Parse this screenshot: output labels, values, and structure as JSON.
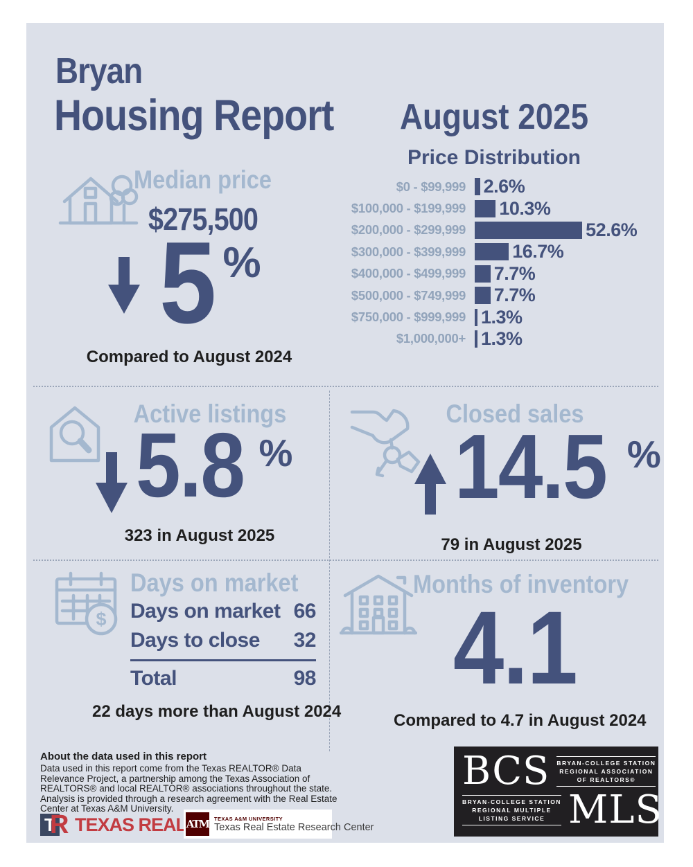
{
  "header": {
    "location": "Bryan",
    "report_title": "Housing Report",
    "period": "August 2025"
  },
  "colors": {
    "navy": "#44527c",
    "light_blue": "#a4b8cf",
    "chart_label_blue": "#92a4bb",
    "panel_background": "#dce0e9",
    "text_dark": "#1e1e1e",
    "realtors_red": "#c23b41",
    "tamu_maroon": "#500000",
    "bcs_box_black": "#211f22"
  },
  "chart_data": {
    "type": "bar",
    "orientation": "horizontal",
    "title": "Price Distribution",
    "categories": [
      "$0 - $99,999",
      "$100,000 - $199,999",
      "$200,000 - $299,999",
      "$300,000 - $399,999",
      "$400,000 - $499,999",
      "$500,000 - $749,999",
      "$750,000 - $999,999",
      "$1,000,000+"
    ],
    "values": [
      2.6,
      10.3,
      52.6,
      16.7,
      7.7,
      7.7,
      1.3,
      1.3
    ],
    "value_labels": [
      "2.6%",
      "10.3%",
      "52.6%",
      "16.7%",
      "7.7%",
      "7.7%",
      "1.3%",
      "1.3%"
    ],
    "unit": "%",
    "xlim": [
      0,
      55
    ],
    "grid": false,
    "legend": "none"
  },
  "median_price": {
    "title": "Median price",
    "value": "$275,500",
    "change_value": "5",
    "change_unit": "%",
    "direction": "down",
    "comparison": "Compared to August 2024"
  },
  "active_listings": {
    "title": "Active listings",
    "change_value": "5.8",
    "change_unit": "%",
    "direction": "down",
    "caption": "323 in August 2025"
  },
  "closed_sales": {
    "title": "Closed sales",
    "change_value": "14.5",
    "change_unit": "%",
    "direction": "up",
    "caption": "79 in August 2025"
  },
  "days_on_market": {
    "title": "Days on market",
    "rows": [
      {
        "label": "Days on market",
        "value": "66"
      },
      {
        "label": "Days to close",
        "value": "32"
      }
    ],
    "total_label": "Total",
    "total_value": "98",
    "caption": "22 days more than August 2024"
  },
  "months_of_inventory": {
    "title": "Months of inventory",
    "value": "4.1",
    "comparison": "Compared to 4.7 in August 2024"
  },
  "footer": {
    "about_title": "About the data used in this report",
    "about_body": "Data used in this report come from the Texas REALTOR® Data Relevance Project, a partnership among the Texas Association of REALTORS® and local REALTOR® associations throughout the state. Analysis is provided through a research agreement with the Real Estate Center at Texas A&M University.",
    "texas_realtors_logo": {
      "monogram_t": "T",
      "monogram_r": "R",
      "text": "TEXAS REALTORS"
    },
    "tamu_logo": {
      "monogram": "ATM",
      "line1": "TEXAS A&M UNIVERSITY",
      "line2": "Texas Real Estate Research Center"
    },
    "bcs_mls_logo": {
      "bcs": "BCS",
      "mls": "MLS",
      "assoc_lines": [
        "BRYAN-COLLEGE STATION",
        "REGIONAL ASSOCIATION",
        "OF REALTORS®"
      ],
      "mls_lines": [
        "BRYAN-COLLEGE STATION",
        "REGIONAL MULTIPLE",
        "LISTING SERVICE"
      ]
    }
  }
}
